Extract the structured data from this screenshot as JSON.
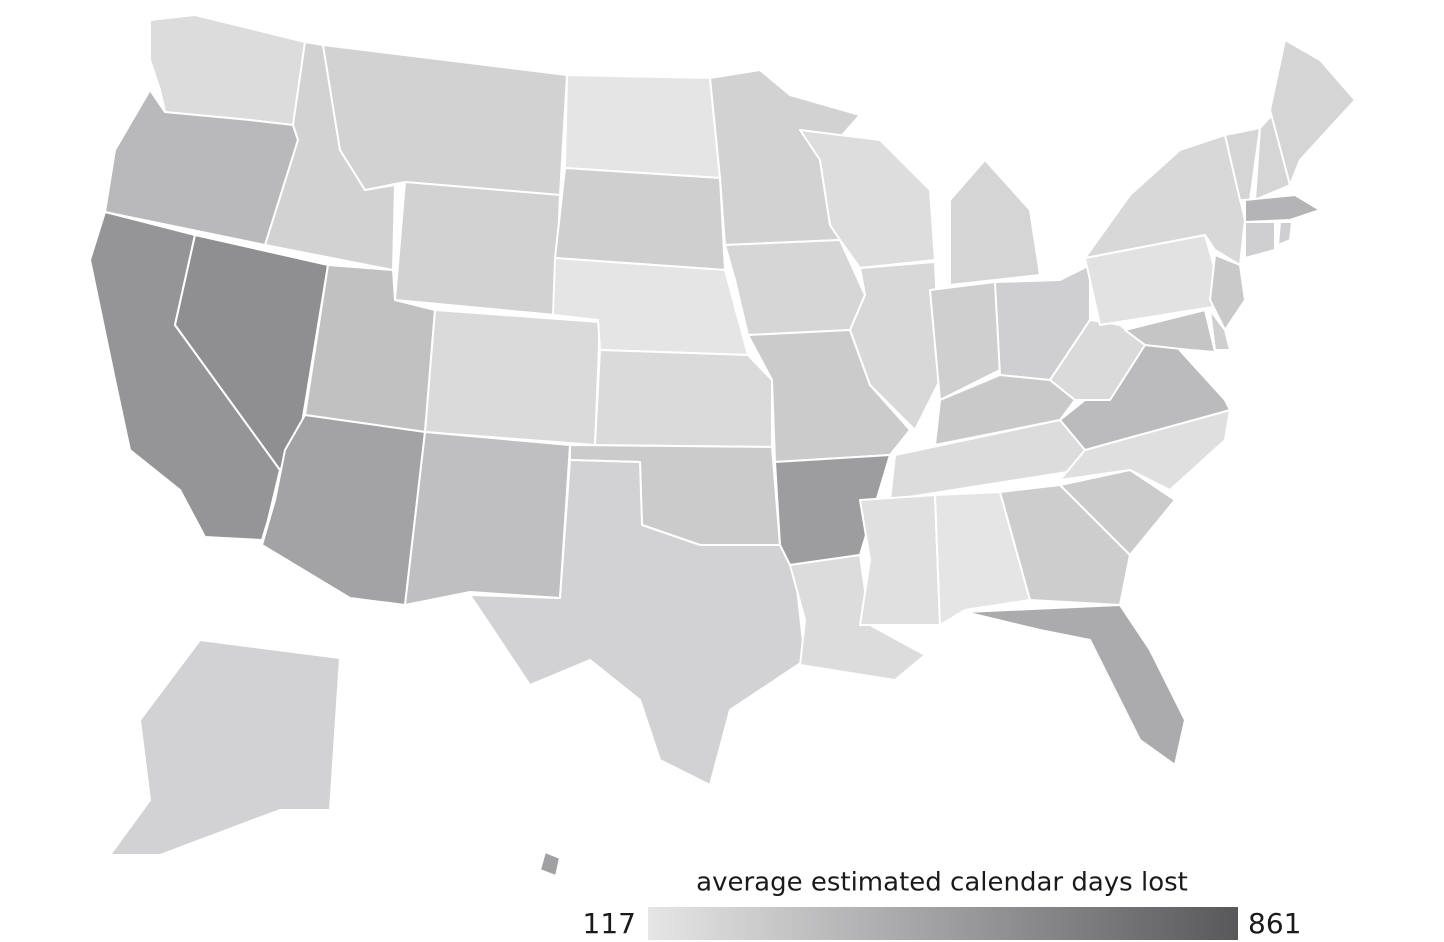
{
  "chart_data": {
    "type": "choropleth",
    "legend_title": "average estimated calendar days lost",
    "range": [
      117,
      861
    ],
    "colorscale": [
      "#e6e6e7",
      "#58585b"
    ],
    "values": [
      169,
      353,
      541,
      571,
      222,
      222,
      222,
      311,
      180,
      468,
      320,
      123,
      240,
      123,
      180,
      260,
      220,
      222,
      200,
      260,
      497,
      170,
      165,
      190,
      205,
      240,
      235,
      270,
      170,
      150,
      120,
      250,
      426,
      260,
      155,
      340,
      180,
      140,
      190,
      205,
      205,
      205,
      380,
      235,
      235,
      270,
      240,
      290,
      220,
      480
    ]
  }
}
